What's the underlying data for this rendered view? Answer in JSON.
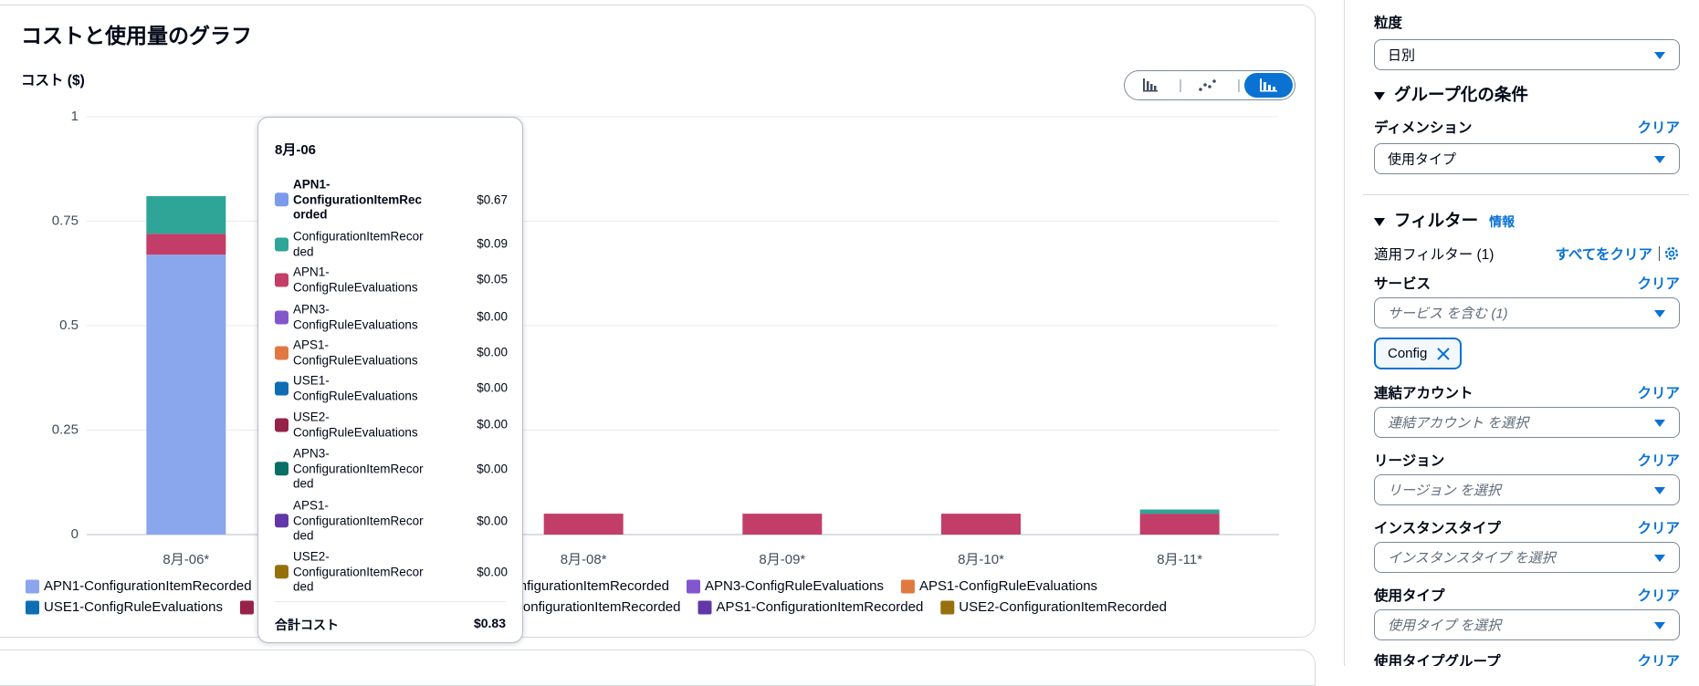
{
  "panel": {
    "title": "コストと使用量のグラフ"
  },
  "chart_data": {
    "type": "bar",
    "stacked": true,
    "y_label": "コスト ($)",
    "categories": [
      "8月-06*",
      null,
      "8月-08*",
      "8月-09*",
      "8月-10*",
      "8月-11*"
    ],
    "ylim": [
      0,
      1
    ],
    "yticks": [
      0,
      0.25,
      0.5,
      0.75,
      1
    ],
    "grid": true,
    "legend": "bottom",
    "series": [
      {
        "name": "APN1-ConfigurationItemRecorded",
        "color": "#8aa6ec",
        "values": [
          0.67,
          null,
          0,
          0,
          0,
          0
        ]
      },
      {
        "name": "APN1-ConfigRuleEvaluations",
        "color": "#c33d69",
        "values": [
          0.05,
          null,
          0.05,
          0.05,
          0.05,
          0.05
        ]
      },
      {
        "name": "ConfigurationItemRecorded",
        "color": "#2ea597",
        "values": [
          0.09,
          null,
          0,
          0,
          0,
          0.01
        ]
      },
      {
        "name": "APN3-ConfigRuleEvaluations",
        "color": "#8456ce",
        "values": [
          0,
          null,
          0,
          0,
          0,
          0
        ]
      },
      {
        "name": "APS1-ConfigRuleEvaluations",
        "color": "#e07941",
        "values": [
          0,
          null,
          0,
          0,
          0,
          0
        ]
      },
      {
        "name": "USE1-ConfigRuleEvaluations",
        "color": "#0f6db4",
        "values": [
          0,
          null,
          0,
          0,
          0,
          0
        ]
      },
      {
        "name": "USE2-ConfigRuleEvaluations",
        "color": "#962249",
        "values": [
          0,
          null,
          0,
          0,
          0,
          0
        ]
      },
      {
        "name": "APN3-ConfigurationItemRecorded",
        "color": "#096f64",
        "values": [
          0,
          null,
          0,
          0,
          0,
          0
        ]
      },
      {
        "name": "APS1-ConfigurationItemRecorded",
        "color": "#6237a7",
        "values": [
          0,
          null,
          0,
          0,
          0,
          0
        ]
      },
      {
        "name": "USE2-ConfigurationItemRecorded",
        "color": "#96700b",
        "values": [
          0,
          null,
          0,
          0,
          0,
          0
        ]
      }
    ],
    "tooltip": {
      "title": "8月-06",
      "rows": [
        {
          "name": "APN1-ConfigurationItemRecorded",
          "color": "#7c9ceb",
          "value": {
            "value": 0.67,
            "label": "$0.67"
          }
        },
        {
          "name": "ConfigurationItemRecorded",
          "color": "#2ea597",
          "value": {
            "value": 0.09,
            "label": "$0.09"
          }
        },
        {
          "name": "APN1-ConfigRuleEvaluations",
          "color": "#c33d69",
          "value": {
            "value": 0.05,
            "label": "$0.05"
          }
        },
        {
          "name": "APN3-ConfigRuleEvaluations",
          "color": "#8456ce",
          "value": {
            "value": 0,
            "label": "$0.00"
          }
        },
        {
          "name": "APS1-ConfigRuleEvaluations",
          "color": "#e07941",
          "value": {
            "value": 0,
            "label": "$0.00"
          }
        },
        {
          "name": "USE1-ConfigRuleEvaluations",
          "color": "#0f6db4",
          "value": {
            "value": 0,
            "label": "$0.00"
          }
        },
        {
          "name": "USE2-ConfigRuleEvaluations",
          "color": "#962249",
          "value": {
            "value": 0,
            "label": "$0.00"
          }
        },
        {
          "name": "APN3-ConfigurationItemRecorded",
          "color": "#096f64",
          "value": {
            "value": 0,
            "label": "$0.00"
          }
        },
        {
          "name": "APS1-ConfigurationItemRecorded",
          "color": "#6237a7",
          "value": {
            "value": 0,
            "label": "$0.00"
          }
        },
        {
          "name": "USE2-ConfigurationItemRecorded",
          "color": "#96700b",
          "value": {
            "value": 0,
            "label": "$0.00"
          }
        }
      ],
      "total_label": "合計コスト",
      "total": {
        "value": 0.83,
        "label": "$0.83"
      }
    }
  },
  "sidebar": {
    "granularity": {
      "label": "粒度",
      "value": "日別"
    },
    "group_by": {
      "title": "グループ化の条件",
      "label": "ディメンション",
      "clear": "クリア",
      "value": "使用タイプ"
    },
    "filters": {
      "title": "フィルター",
      "info": "情報",
      "applied": "適用フィルター (1)",
      "clear_all": "すべてをクリア",
      "fields": [
        {
          "label": "サービス",
          "clear": "クリア",
          "value": "サービス を含む (1)",
          "token": "Config"
        },
        {
          "label": "連結アカウント",
          "clear": "クリア",
          "value": "連結アカウント を選択"
        },
        {
          "label": "リージョン",
          "clear": "クリア",
          "value": "リージョン を選択"
        },
        {
          "label": "インスタンスタイプ",
          "clear": "クリア",
          "value": "インスタンスタイプ を選択"
        },
        {
          "label": "使用タイプ",
          "clear": "クリア",
          "value": "使用タイプ を選択"
        },
        {
          "label": "使用タイプグループ",
          "clear": "クリア"
        }
      ]
    }
  }
}
